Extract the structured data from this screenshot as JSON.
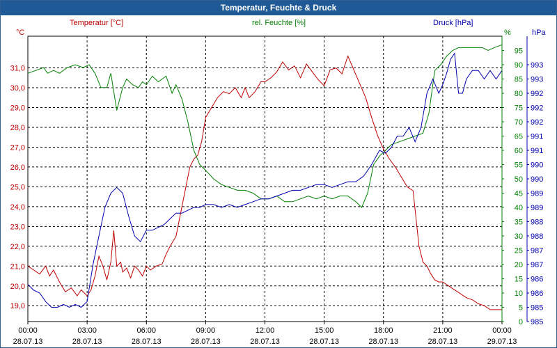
{
  "window": {
    "title": "Temperatur, Feuchte & Druck"
  },
  "colors": {
    "temperature": "#c00000",
    "humidity": "#008000",
    "pressure": "#0000b0",
    "title_bar": "#1f5a96",
    "grid": "#000000"
  },
  "chart_data": {
    "type": "line",
    "title": "Temperatur, Feuchte & Druck",
    "grid": true,
    "x_ticks": [
      {
        "time": "00:00",
        "date": "28.07.13"
      },
      {
        "time": "03:00",
        "date": "28.07.13"
      },
      {
        "time": "06:00",
        "date": "28.07.13"
      },
      {
        "time": "09:00",
        "date": "28.07.13"
      },
      {
        "time": "12:00",
        "date": "28.07.13"
      },
      {
        "time": "15:00",
        "date": "28.07.13"
      },
      {
        "time": "18:00",
        "date": "28.07.13"
      },
      {
        "time": "21:00",
        "date": "28.07.13"
      },
      {
        "time": "00:00",
        "date": "29.07.13"
      }
    ],
    "xlim_hours": [
      0,
      24
    ],
    "axes": {
      "temperature": {
        "label": "Temperatur [°C]",
        "unit": "°C",
        "ylim": [
          18.2,
          32.6
        ],
        "ticks": [
          {
            "v": 19.0,
            "label": "19,0"
          },
          {
            "v": 20.0,
            "label": "20,0"
          },
          {
            "v": 21.0,
            "label": "21,0"
          },
          {
            "v": 22.0,
            "label": "22,0"
          },
          {
            "v": 23.0,
            "label": "23,0"
          },
          {
            "v": 24.0,
            "label": "24,0"
          },
          {
            "v": 25.0,
            "label": "25,0"
          },
          {
            "v": 26.0,
            "label": "26,0"
          },
          {
            "v": 27.0,
            "label": "27,0"
          },
          {
            "v": 28.0,
            "label": "28,0"
          },
          {
            "v": 29.0,
            "label": "29,0"
          },
          {
            "v": 30.0,
            "label": "30,0"
          },
          {
            "v": 31.0,
            "label": "31,0"
          }
        ]
      },
      "humidity": {
        "label": "rel. Feuchte [%]",
        "unit": "%",
        "ylim": [
          0,
          100
        ],
        "ticks": [
          {
            "v": 0,
            "label": "0"
          },
          {
            "v": 5,
            "label": "5"
          },
          {
            "v": 10,
            "label": "10"
          },
          {
            "v": 15,
            "label": "15"
          },
          {
            "v": 20,
            "label": "20"
          },
          {
            "v": 25,
            "label": "25"
          },
          {
            "v": 30,
            "label": "30"
          },
          {
            "v": 35,
            "label": "35"
          },
          {
            "v": 40,
            "label": "40"
          },
          {
            "v": 45,
            "label": "45"
          },
          {
            "v": 50,
            "label": "50"
          },
          {
            "v": 55,
            "label": "55"
          },
          {
            "v": 60,
            "label": "60"
          },
          {
            "v": 65,
            "label": "65"
          },
          {
            "v": 70,
            "label": "70"
          },
          {
            "v": 75,
            "label": "75"
          },
          {
            "v": 80,
            "label": "80"
          },
          {
            "v": 85,
            "label": "85"
          },
          {
            "v": 90,
            "label": "90"
          },
          {
            "v": 95,
            "label": "95"
          }
        ]
      },
      "pressure": {
        "label": "Druck [hPa]",
        "unit": "hPa",
        "ylim": [
          984.5,
          994.5
        ],
        "ticks": [
          {
            "v": 984.5,
            "label": "985"
          },
          {
            "v": 985.0,
            "label": "985"
          },
          {
            "v": 985.5,
            "label": "986"
          },
          {
            "v": 986.0,
            "label": "986"
          },
          {
            "v": 986.5,
            "label": "987"
          },
          {
            "v": 987.0,
            "label": "987"
          },
          {
            "v": 987.5,
            "label": "988"
          },
          {
            "v": 988.0,
            "label": "988"
          },
          {
            "v": 988.5,
            "label": "989"
          },
          {
            "v": 989.0,
            "label": "989"
          },
          {
            "v": 989.5,
            "label": "990"
          },
          {
            "v": 990.0,
            "label": "990"
          },
          {
            "v": 990.5,
            "label": "991"
          },
          {
            "v": 991.0,
            "label": "991"
          },
          {
            "v": 991.5,
            "label": "992"
          },
          {
            "v": 992.0,
            "label": "992"
          },
          {
            "v": 992.5,
            "label": "992"
          },
          {
            "v": 993.0,
            "label": "993"
          },
          {
            "v": 993.5,
            "label": "993"
          }
        ]
      }
    },
    "series": [
      {
        "name": "Temperatur [°C]",
        "axis": "temperature",
        "x": [
          0,
          0.3,
          0.6,
          0.9,
          1.1,
          1.3,
          1.6,
          1.9,
          2.2,
          2.5,
          2.7,
          2.9,
          3.0,
          3.2,
          3.4,
          3.6,
          3.8,
          4.0,
          4.2,
          4.35,
          4.5,
          4.7,
          4.8,
          5.0,
          5.2,
          5.4,
          5.6,
          5.8,
          6.0,
          6.2,
          6.5,
          6.8,
          7.0,
          7.2,
          7.5,
          7.8,
          8.0,
          8.2,
          8.4,
          8.6,
          8.8,
          9.0,
          9.3,
          9.6,
          9.9,
          10.2,
          10.5,
          10.8,
          11.0,
          11.2,
          11.5,
          11.8,
          12.0,
          12.3,
          12.6,
          12.9,
          13.2,
          13.5,
          13.8,
          14.1,
          14.4,
          14.7,
          15.0,
          15.3,
          15.6,
          15.9,
          16.2,
          16.5,
          16.8,
          17.1,
          17.4,
          17.7,
          18.0,
          18.3,
          18.6,
          18.9,
          19.2,
          19.5,
          19.8,
          20.0,
          20.2,
          20.4,
          20.6,
          20.8,
          21.0,
          21.3,
          21.6,
          21.9,
          22.2,
          22.5,
          22.8,
          23.1,
          23.4,
          23.7,
          24.0
        ],
        "values": [
          21.0,
          20.8,
          20.6,
          21.0,
          20.5,
          20.8,
          20.2,
          19.7,
          19.9,
          19.5,
          19.8,
          19.6,
          19.5,
          19.8,
          20.5,
          21.5,
          21.0,
          20.3,
          21.2,
          22.8,
          21.0,
          21.2,
          20.7,
          20.9,
          20.4,
          21.0,
          20.8,
          20.5,
          21.0,
          20.8,
          21.0,
          21.1,
          21.6,
          22.0,
          22.5,
          24.0,
          25.0,
          26.0,
          26.4,
          26.6,
          27.3,
          28.5,
          29.0,
          29.5,
          29.8,
          29.7,
          30.0,
          29.5,
          30.0,
          29.5,
          29.8,
          30.3,
          30.3,
          30.5,
          30.8,
          31.3,
          30.9,
          31.1,
          30.5,
          31.2,
          30.8,
          30.4,
          30.1,
          30.9,
          31.0,
          30.7,
          31.6,
          30.9,
          30.2,
          29.5,
          28.5,
          27.6,
          26.9,
          26.4,
          26.0,
          25.5,
          25.0,
          24.8,
          22.0,
          21.2,
          21.0,
          20.6,
          20.3,
          20.2,
          20.2,
          20.0,
          19.8,
          19.6,
          19.4,
          19.3,
          19.1,
          19.0,
          18.8,
          18.8,
          18.8
        ]
      },
      {
        "name": "rel. Feuchte [%]",
        "axis": "humidity",
        "x": [
          0,
          0.4,
          0.8,
          1.0,
          1.3,
          1.6,
          2.0,
          2.4,
          2.8,
          3.1,
          3.4,
          3.7,
          4.0,
          4.2,
          4.5,
          4.8,
          5.0,
          5.3,
          5.6,
          5.8,
          6.0,
          6.3,
          6.6,
          7.0,
          7.3,
          7.5,
          7.8,
          8.1,
          8.4,
          8.7,
          9.0,
          9.4,
          9.8,
          10.2,
          10.6,
          11.0,
          11.4,
          11.8,
          12.2,
          12.6,
          13.0,
          13.4,
          13.8,
          14.2,
          14.6,
          15.0,
          15.4,
          15.8,
          16.2,
          16.6,
          16.9,
          17.2,
          17.5,
          17.8,
          18.1,
          18.4,
          18.8,
          19.2,
          19.6,
          20.0,
          20.3,
          20.6,
          20.9,
          21.2,
          21.5,
          21.8,
          22.1,
          22.4,
          22.7,
          23.0,
          23.3,
          23.6,
          24.0
        ],
        "values": [
          87,
          88,
          89,
          87,
          88,
          87,
          89,
          90,
          89,
          90,
          87,
          82,
          82,
          87,
          74,
          82,
          85,
          83,
          82,
          84,
          83,
          86,
          84,
          86,
          80,
          83,
          78,
          70,
          60,
          55,
          53,
          50,
          48,
          47,
          46,
          46,
          45,
          43,
          43,
          44,
          42,
          42,
          43,
          44,
          43,
          44,
          43,
          44,
          44,
          42,
          40,
          45,
          55,
          58,
          60,
          62,
          63,
          64,
          65,
          66,
          73,
          88,
          90,
          93,
          95,
          96,
          96,
          96,
          96,
          96,
          95,
          96,
          97
        ]
      },
      {
        "name": "Druck [hPa]",
        "axis": "pressure",
        "x": [
          0,
          0.3,
          0.6,
          0.9,
          1.2,
          1.5,
          1.8,
          2.1,
          2.4,
          2.7,
          3.0,
          3.3,
          3.6,
          3.9,
          4.2,
          4.5,
          4.8,
          5.1,
          5.4,
          5.7,
          6.0,
          6.3,
          6.6,
          6.9,
          7.2,
          7.5,
          7.8,
          8.1,
          8.4,
          8.7,
          9.0,
          9.4,
          9.8,
          10.2,
          10.6,
          11.0,
          11.4,
          11.8,
          12.2,
          12.6,
          13.0,
          13.4,
          13.8,
          14.2,
          14.6,
          15.0,
          15.4,
          15.8,
          16.2,
          16.6,
          17.0,
          17.4,
          17.8,
          18.1,
          18.4,
          18.7,
          19.0,
          19.3,
          19.6,
          19.9,
          20.2,
          20.5,
          20.8,
          21.0,
          21.2,
          21.4,
          21.6,
          21.8,
          22.0,
          22.2,
          22.5,
          22.8,
          23.1,
          23.4,
          23.7,
          24.0
        ],
        "values": [
          985.8,
          985.6,
          985.5,
          985.2,
          985.0,
          985.0,
          985.1,
          985.0,
          985.1,
          985.0,
          985.2,
          986.5,
          987.5,
          988.5,
          989.0,
          989.2,
          989.0,
          988.2,
          987.5,
          987.3,
          987.7,
          987.7,
          987.8,
          987.9,
          988.1,
          988.3,
          988.3,
          988.4,
          988.5,
          988.5,
          988.6,
          988.6,
          988.5,
          988.6,
          988.5,
          988.6,
          988.7,
          988.8,
          988.8,
          988.9,
          989.0,
          989.1,
          989.1,
          989.2,
          989.3,
          989.3,
          989.2,
          989.3,
          989.4,
          989.4,
          989.6,
          990.0,
          990.5,
          990.4,
          990.6,
          991.0,
          991.0,
          991.3,
          990.8,
          991.3,
          992.5,
          993.0,
          992.5,
          992.8,
          993.2,
          993.7,
          993.9,
          992.5,
          992.5,
          993.0,
          993.3,
          993.3,
          993.0,
          993.3,
          993.0,
          993.3
        ]
      }
    ]
  }
}
